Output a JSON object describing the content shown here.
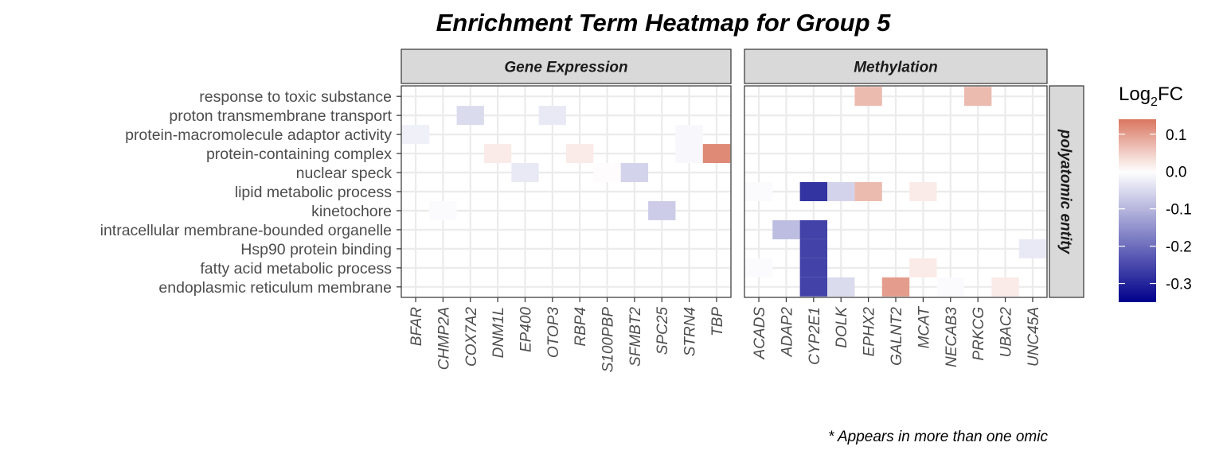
{
  "chart_data": {
    "type": "heatmap",
    "title": "Enrichment Term Heatmap for  Group 5",
    "facets": [
      "Gene Expression",
      "Methylation"
    ],
    "row_strip": "polyatomic entity",
    "terms": [
      "response to toxic substance",
      "proton transmembrane transport",
      "protein-macromolecule adaptor activity",
      "protein-containing complex",
      "nuclear speck",
      "lipid metabolic process",
      "kinetochore",
      "intracellular membrane-bounded organelle",
      "Hsp90 protein binding",
      "fatty acid metabolic process",
      "endoplasmic reticulum membrane"
    ],
    "genes": {
      "Gene Expression": [
        "BFAR",
        "CHMP2A",
        "COX7A2",
        "DNM1L",
        "EP400",
        "OTOP3",
        "RBP4",
        "S100PBP",
        "SFMBT2",
        "SPC25",
        "STRN4",
        "TBP"
      ],
      "Methylation": [
        "ACADS",
        "ADAP2",
        "CYP2E1",
        "DOLK",
        "EPHX2",
        "GALNT2",
        "MCAT",
        "NECAB3",
        "PRKCG",
        "UBAC2",
        "UNC45A"
      ]
    },
    "cells": [
      {
        "facet": "Gene Expression",
        "gene": "BFAR",
        "term": "protein-macromolecule adaptor activity",
        "value": -0.02
      },
      {
        "facet": "Gene Expression",
        "gene": "CHMP2A",
        "term": "kinetochore",
        "value": -0.005
      },
      {
        "facet": "Gene Expression",
        "gene": "COX7A2",
        "term": "proton transmembrane transport",
        "value": -0.05
      },
      {
        "facet": "Gene Expression",
        "gene": "DNM1L",
        "term": "protein-containing complex",
        "value": 0.02
      },
      {
        "facet": "Gene Expression",
        "gene": "EP400",
        "term": "nuclear speck",
        "value": -0.03
      },
      {
        "facet": "Gene Expression",
        "gene": "OTOP3",
        "term": "proton transmembrane transport",
        "value": -0.03
      },
      {
        "facet": "Gene Expression",
        "gene": "RBP4",
        "term": "protein-containing complex",
        "value": 0.02
      },
      {
        "facet": "Gene Expression",
        "gene": "S100PBP",
        "term": "nuclear speck",
        "value": 0.003
      },
      {
        "facet": "Gene Expression",
        "gene": "SFMBT2",
        "term": "nuclear speck",
        "value": -0.06
      },
      {
        "facet": "Gene Expression",
        "gene": "SPC25",
        "term": "kinetochore",
        "value": -0.07
      },
      {
        "facet": "Gene Expression",
        "gene": "STRN4",
        "term": "protein-macromolecule adaptor activity",
        "value": -0.01
      },
      {
        "facet": "Gene Expression",
        "gene": "STRN4",
        "term": "protein-containing complex",
        "value": -0.01
      },
      {
        "facet": "Gene Expression",
        "gene": "TBP",
        "term": "protein-containing complex",
        "value": 0.12
      },
      {
        "facet": "Methylation",
        "gene": "ACADS",
        "term": "lipid metabolic process",
        "value": -0.005
      },
      {
        "facet": "Methylation",
        "gene": "ACADS",
        "term": "fatty acid metabolic process",
        "value": -0.005
      },
      {
        "facet": "Methylation",
        "gene": "ADAP2",
        "term": "intracellular membrane-bounded organelle",
        "value": -0.09
      },
      {
        "facet": "Methylation",
        "gene": "CYP2E1",
        "term": "lipid metabolic process",
        "value": -0.28
      },
      {
        "facet": "Methylation",
        "gene": "CYP2E1",
        "term": "intracellular membrane-bounded organelle",
        "value": -0.26
      },
      {
        "facet": "Methylation",
        "gene": "CYP2E1",
        "term": "Hsp90 protein binding",
        "value": -0.26
      },
      {
        "facet": "Methylation",
        "gene": "CYP2E1",
        "term": "fatty acid metabolic process",
        "value": -0.26
      },
      {
        "facet": "Methylation",
        "gene": "CYP2E1",
        "term": "endoplasmic reticulum membrane",
        "value": -0.26
      },
      {
        "facet": "Methylation",
        "gene": "DOLK",
        "term": "lipid metabolic process",
        "value": -0.06
      },
      {
        "facet": "Methylation",
        "gene": "DOLK",
        "term": "endoplasmic reticulum membrane",
        "value": -0.05
      },
      {
        "facet": "Methylation",
        "gene": "EPHX2",
        "term": "response to toxic substance",
        "value": 0.07
      },
      {
        "facet": "Methylation",
        "gene": "EPHX2",
        "term": "lipid metabolic process",
        "value": 0.07
      },
      {
        "facet": "Methylation",
        "gene": "GALNT2",
        "term": "endoplasmic reticulum membrane",
        "value": 0.1
      },
      {
        "facet": "Methylation",
        "gene": "MCAT",
        "term": "lipid metabolic process",
        "value": 0.02
      },
      {
        "facet": "Methylation",
        "gene": "MCAT",
        "term": "fatty acid metabolic process",
        "value": 0.02
      },
      {
        "facet": "Methylation",
        "gene": "NECAB3",
        "term": "endoplasmic reticulum membrane",
        "value": -0.005
      },
      {
        "facet": "Methylation",
        "gene": "PRKCG",
        "term": "response to toxic substance",
        "value": 0.07
      },
      {
        "facet": "Methylation",
        "gene": "UBAC2",
        "term": "endoplasmic reticulum membrane",
        "value": 0.02
      },
      {
        "facet": "Methylation",
        "gene": "UNC45A",
        "term": "Hsp90 protein binding",
        "value": -0.03
      }
    ],
    "legend": {
      "title_main": "Log",
      "title_sub": "2",
      "title_suffix": "FC",
      "range": [
        -0.35,
        0.14
      ],
      "ticks": [
        0.1,
        0.0,
        -0.1,
        -0.2,
        -0.3
      ],
      "tick_labels": [
        "0.1",
        "0.0",
        "-0.1",
        "-0.2",
        "-0.3"
      ],
      "colors": {
        "low": "#00008B",
        "mid": "#FFFFFF",
        "high": "#D97660"
      },
      "placement": "right"
    },
    "caption": "* Appears in more than one omic",
    "grid": true
  },
  "colors": {
    "panel_border": "#333333",
    "strip_fill": "#D9D9D9",
    "grid": "#EBEBEB",
    "tick": "#333333"
  }
}
